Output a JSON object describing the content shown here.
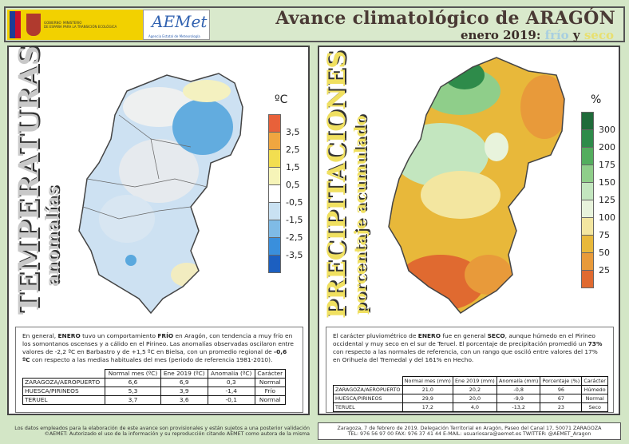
{
  "header": {
    "gov_line1": "GOBIERNO",
    "gov_line2": "DE ESPAÑA",
    "ministry_line1": "MINISTERIO",
    "ministry_line2": "PARA LA TRANSICIÓN ECOLÓGICA",
    "aemet_logo": "AEMet",
    "aemet_sub": "Agencia Estatal de Meteorología",
    "title_pre": "Avance climatológico de ",
    "title_region": "ARAGÓN",
    "subtitle_pre": "enero 2019: ",
    "subtitle_cold": "frío",
    "subtitle_and": " y ",
    "subtitle_dry": "seco"
  },
  "temp": {
    "title": "TEMPERATURAS",
    "subtitle": "anomalías",
    "unit": "ºC",
    "legend": {
      "labels": [
        "3,5",
        "2,5",
        "1,5",
        "0,5",
        "-0,5",
        "-1,5",
        "-2,5",
        "-3,5"
      ],
      "colors": [
        "#e8613a",
        "#f0a640",
        "#f2de50",
        "#f6f4b8",
        "#ffffff",
        "#c9e1f2",
        "#7fbbe6",
        "#3a8fdc",
        "#1c5fc0"
      ]
    },
    "text": {
      "p1": "En general, ",
      "b1": "ENERO",
      "p2": " tuvo un comportamiento ",
      "b2": "FRÍO",
      "p3": " en Aragón, con tendencia a muy frío en los somontanos oscenses y a cálido en el Pirineo. Las anomalías observadas oscilaron entre valores de -2,2 ºC en Barbastro y de +1,5 ºC en Bielsa, con un promedio regional de ",
      "b3": "-0,6 ºC",
      "p4": " con respecto a las medias habituales del mes (periodo de referencia 1981-2010)."
    },
    "table": {
      "headers": [
        "Normal mes (ºC)",
        "Ene 2019 (ºC)",
        "Anomalía (ºC)",
        "Carácter"
      ],
      "rows": [
        [
          "ZARAGOZA/AEROPUERTO",
          "6,6",
          "6,9",
          "0,3",
          "Normal"
        ],
        [
          "HUESCA/PIRINEOS",
          "5,3",
          "3,9",
          "-1,4",
          "Frío"
        ],
        [
          "TERUEL",
          "3,7",
          "3,6",
          "-0,1",
          "Normal"
        ]
      ]
    }
  },
  "precip": {
    "title": "PRECIPITACIONES",
    "subtitle": "porcentaje acumulado",
    "unit": "%",
    "legend": {
      "labels": [
        "300",
        "200",
        "175",
        "150",
        "125",
        "100",
        "75",
        "50",
        "25"
      ],
      "colors": [
        "#1f6b3a",
        "#2e8b4a",
        "#53ad5e",
        "#8fce8a",
        "#c3e6bf",
        "#e8f3dc",
        "#f3e6a0",
        "#e8b83a",
        "#e89a3a",
        "#e06a30"
      ]
    },
    "text": {
      "p1": "El carácter pluviométrico de ",
      "b1": "ENERO",
      "p2": " fue en general ",
      "b2": "SECO",
      "p3": ", aunque húmedo en el Pirineo occidental y muy seco en el sur de Teruel. El porcentaje de precipitación promedió un ",
      "b3": "73%",
      "p4": " con respecto a las normales de referencia, con un rango que osciló entre valores del 17% en Orihuela del Tremedal y del 161% en Hecho."
    },
    "table": {
      "headers": [
        "Normal mes (mm)",
        "Ene 2019 (mm)",
        "Anomalía (mm)",
        "Porcentaje (%)",
        "Carácter"
      ],
      "rows": [
        [
          "ZARAGOZA/AEROPUERTO",
          "21,0",
          "20,2",
          "-0,8",
          "96",
          "Húmedo"
        ],
        [
          "HUESCA/PIRINEOS",
          "29,9",
          "20,0",
          "-9,9",
          "67",
          "Normal"
        ],
        [
          "TERUEL",
          "17,2",
          "4,0",
          "-13,2",
          "23",
          "Seco"
        ]
      ]
    }
  },
  "footer": {
    "left1": "Los datos empleados para la elaboración de este avance son provisionales y están sujetos a una posterior validación",
    "left2": "©AEMET: Autorizado el uso de la información y su reproducción citando AEMET como autora de la misma",
    "right1": "Zaragoza, 7 de febrero de 2019. Delegación Territorial en Aragón, Paseo del Canal 17, 50071 ZARAGOZA",
    "right2": "TEL: 976 56 97 00  FAX: 976 37 41 44  E-MAIL: usuariosara@aemet.es  TWITTER: @AEMET_Aragon"
  }
}
